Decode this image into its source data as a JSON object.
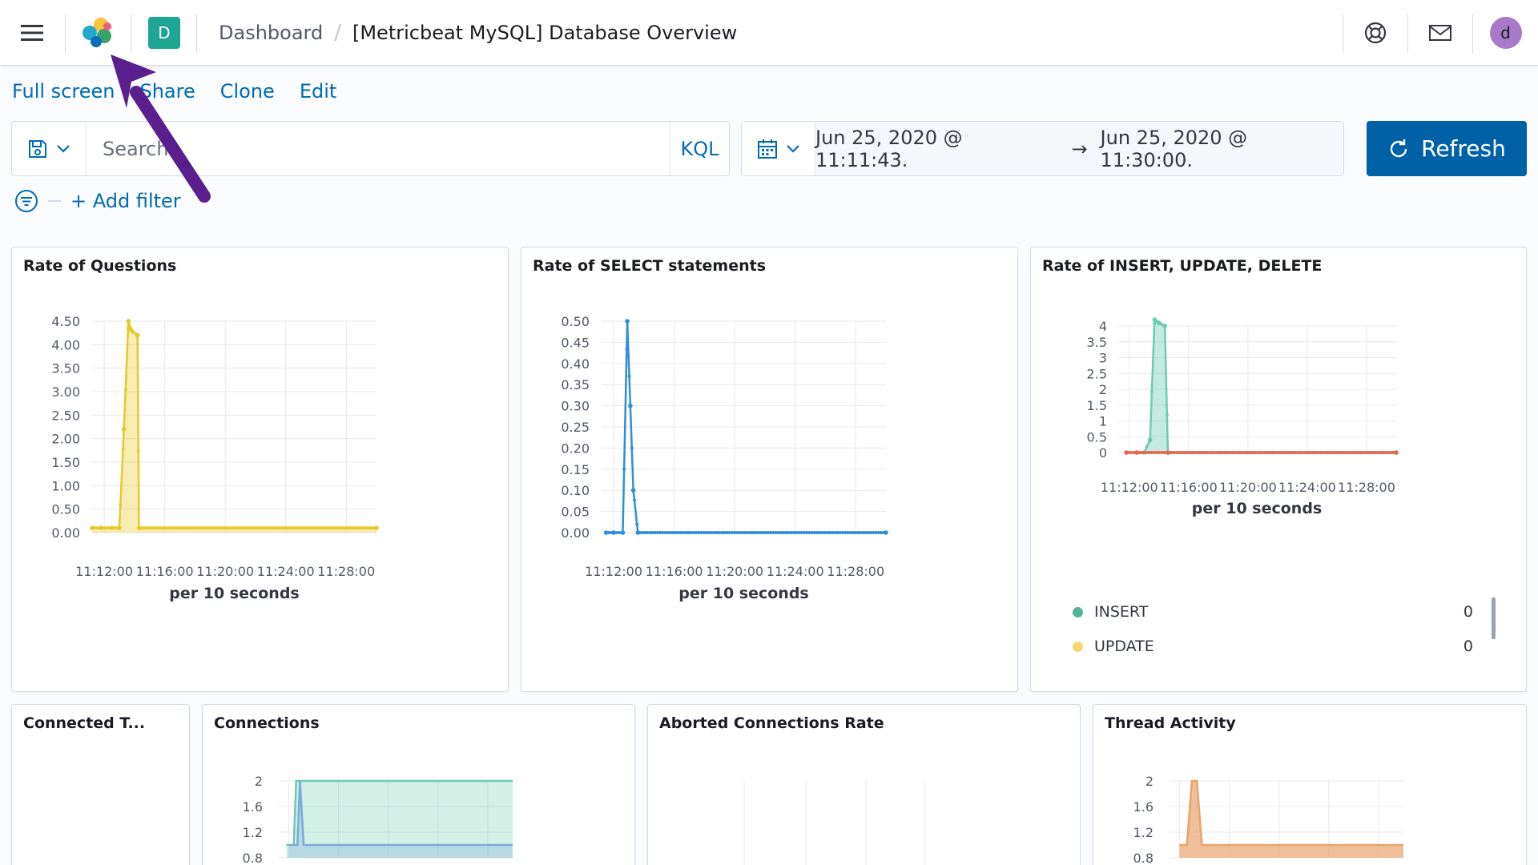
{
  "header": {
    "space_initial": "D",
    "breadcrumb_parent": "Dashboard",
    "breadcrumb_separator": "/",
    "breadcrumb_current": "[Metricbeat MySQL] Database Overview",
    "user_initial": "d"
  },
  "topnav": {
    "full_screen": "Full screen",
    "share": "Share",
    "clone": "Clone",
    "edit": "Edit"
  },
  "query": {
    "search_placeholder": "Search",
    "language": "KQL"
  },
  "time": {
    "start": "Jun 25, 2020 @ 11:11:43.",
    "arrow": "→",
    "end": "Jun 25, 2020 @ 11:30:00.",
    "refresh_label": "Refresh"
  },
  "filters": {
    "add_filter": "+ Add filter"
  },
  "panels": {
    "questions": "Rate of Questions",
    "select": "Rate of SELECT statements",
    "iud": "Rate of INSERT, UPDATE, DELETE",
    "connected_threads": "Connected T...",
    "connections": "Connections",
    "aborted": "Aborted Connections Rate",
    "threads": "Thread Activity"
  },
  "legend": {
    "items": [
      {
        "label": "INSERT",
        "value": "0",
        "color": "#54b399"
      },
      {
        "label": "UPDATE",
        "value": "0",
        "color": "#f1d86f"
      }
    ]
  },
  "colors": {
    "primary": "#0061a6",
    "link": "#006bb4",
    "questions_series": "#e7c928",
    "select_series": "#2e8fd8",
    "insert_series": "#6dccb1",
    "delete_series": "#e7664c",
    "connections_series_a": "#6dccb1",
    "connections_series_b": "#79aad9",
    "threads_series": "#e7a46c",
    "annotation_arrow": "#5a1f8c"
  },
  "chart_data": [
    {
      "type": "area",
      "title": "Rate of Questions",
      "xlabel": "per 10 seconds",
      "ylabel": "",
      "x_ticks": [
        "11:12:00",
        "11:16:00",
        "11:20:00",
        "11:24:00",
        "11:28:00"
      ],
      "y_ticks": [
        "0.00",
        "0.50",
        "1.00",
        "1.50",
        "2.00",
        "2.50",
        "3.00",
        "3.50",
        "4.00",
        "4.50"
      ],
      "ylim": [
        0,
        4.5
      ],
      "xlim_minutes": [
        11.2,
        30
      ],
      "series": [
        {
          "color": "#e7c928",
          "x": [
            11.2,
            11.8,
            12.5,
            13.0,
            13.3,
            13.6,
            13.8,
            14.2,
            14.3,
            30.0
          ],
          "y": [
            0.1,
            0.1,
            0.1,
            0.1,
            2.2,
            4.5,
            4.3,
            4.2,
            0.1,
            0.1
          ]
        }
      ]
    },
    {
      "type": "line",
      "title": "Rate of SELECT statements",
      "xlabel": "per 10 seconds",
      "x_ticks": [
        "11:12:00",
        "11:16:00",
        "11:20:00",
        "11:24:00",
        "11:28:00"
      ],
      "y_ticks": [
        "0.00",
        "0.05",
        "0.10",
        "0.15",
        "0.20",
        "0.25",
        "0.30",
        "0.35",
        "0.40",
        "0.45",
        "0.50"
      ],
      "ylim": [
        0,
        0.5
      ],
      "xlim_minutes": [
        11.2,
        30
      ],
      "series": [
        {
          "color": "#2e8fd8",
          "x": [
            11.5,
            12.0,
            12.6,
            12.9,
            13.1,
            13.3,
            13.6,
            30.0
          ],
          "y": [
            0,
            0,
            0,
            0.5,
            0.3,
            0.1,
            0,
            0
          ]
        }
      ]
    },
    {
      "type": "area",
      "title": "Rate of INSERT, UPDATE, DELETE",
      "xlabel": "per 10 seconds",
      "x_ticks": [
        "11:12:00",
        "11:16:00",
        "11:20:00",
        "11:24:00",
        "11:28:00"
      ],
      "y_ticks": [
        "0",
        "0.5",
        "1",
        "1.5",
        "2",
        "2.5",
        "3",
        "3.5",
        "4"
      ],
      "ylim": [
        0,
        4
      ],
      "xlim_minutes": [
        11.2,
        30
      ],
      "series": [
        {
          "name": "INSERT",
          "color": "#6dccb1",
          "x": [
            12.5,
            13.0,
            13.4,
            13.7,
            14.0,
            14.4,
            14.6,
            30.0
          ],
          "y": [
            0,
            0,
            0.4,
            4.2,
            4.1,
            4.0,
            0,
            0
          ]
        },
        {
          "color": "#e7664c",
          "x": [
            11.8,
            12.5,
            14.6,
            30.0
          ],
          "y": [
            0,
            0,
            0,
            0
          ]
        }
      ]
    },
    {
      "type": "area",
      "title": "Connections",
      "y_ticks": [
        "0.8",
        "1.2",
        "1.6",
        "2"
      ],
      "ylim": [
        0.8,
        2
      ],
      "series": [
        {
          "color": "#6dccb1",
          "x": [
            11.8,
            12.4,
            12.6,
            30
          ],
          "y": [
            1,
            1,
            2,
            2
          ]
        },
        {
          "color": "#79aad9",
          "x": [
            12.0,
            12.7,
            12.9,
            13.2,
            30
          ],
          "y": [
            1,
            1,
            2,
            1,
            1
          ]
        }
      ]
    },
    {
      "type": "area",
      "title": "Thread Activity",
      "y_ticks": [
        "0.8",
        "1.2",
        "1.6",
        "2"
      ],
      "ylim": [
        0.8,
        2
      ],
      "series": [
        {
          "color": "#e7a46c",
          "x": [
            12.0,
            12.6,
            13.0,
            13.4,
            13.8,
            30
          ],
          "y": [
            1,
            1,
            2,
            2,
            1,
            1
          ]
        }
      ]
    }
  ]
}
